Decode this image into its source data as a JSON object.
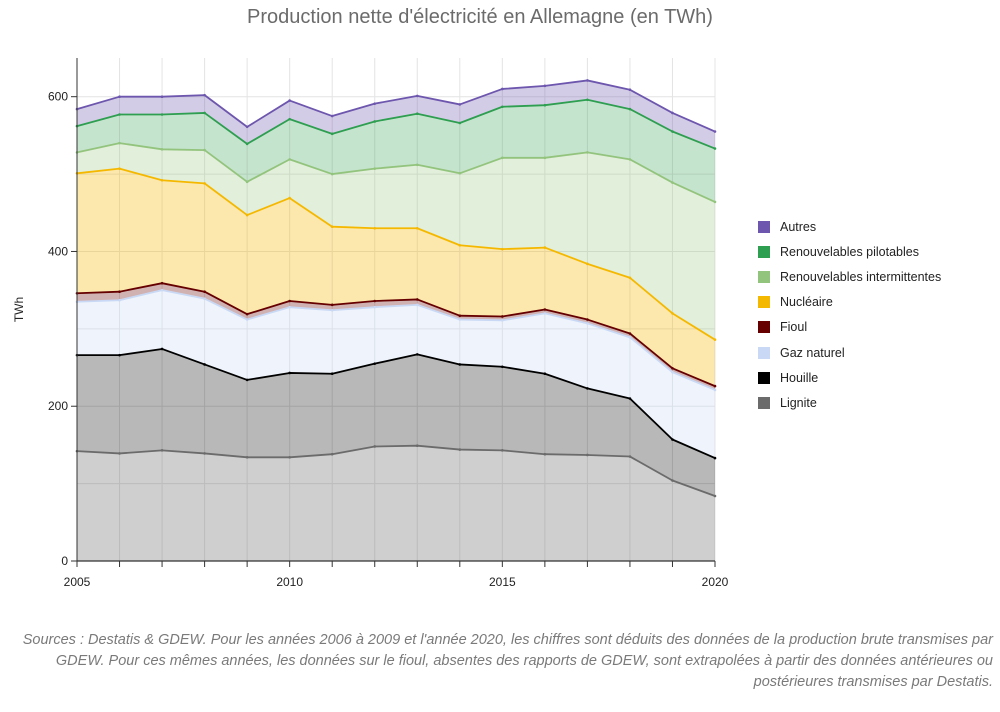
{
  "chart_data": {
    "type": "area",
    "stacked": true,
    "title": "Production nette d'électricité en Allemagne (en TWh)",
    "ylabel": "TWh",
    "xlabel": "",
    "x": [
      2005,
      2006,
      2007,
      2008,
      2009,
      2010,
      2011,
      2012,
      2013,
      2014,
      2015,
      2016,
      2017,
      2018,
      2019,
      2020
    ],
    "xlim": [
      2005,
      2020
    ],
    "ylim": [
      0,
      650
    ],
    "xticks": [
      "2005",
      "2010",
      "2015",
      "2020"
    ],
    "yticks": [
      "0",
      "200",
      "400",
      "600"
    ],
    "grid": true,
    "legend_position": "right",
    "series": [
      {
        "name": "Lignite",
        "color": "#6b6b6b",
        "values": [
          142,
          139,
          143,
          139,
          134,
          134,
          138,
          148,
          149,
          144,
          143,
          138,
          137,
          135,
          104,
          84
        ]
      },
      {
        "name": "Houille",
        "color": "#000000",
        "values": [
          124,
          127,
          131,
          115,
          100,
          109,
          104,
          107,
          118,
          110,
          108,
          104,
          86,
          75,
          53,
          49
        ]
      },
      {
        "name": "Gaz naturel",
        "color": "#c9d9f5",
        "values": [
          69,
          71,
          76,
          85,
          78,
          85,
          82,
          73,
          64,
          58,
          60,
          78,
          84,
          79,
          87,
          88
        ]
      },
      {
        "name": "Fioul",
        "color": "#660000",
        "values": [
          11,
          11,
          9,
          9,
          7,
          8,
          7,
          8,
          7,
          5,
          5,
          5,
          5,
          5,
          5,
          5
        ]
      },
      {
        "name": "Nucléaire",
        "color": "#f5b800",
        "values": [
          155,
          159,
          133,
          140,
          128,
          133,
          101,
          94,
          92,
          91,
          87,
          80,
          72,
          72,
          71,
          60
        ]
      },
      {
        "name": "Renouvelables intermittentes",
        "color": "#93c47d",
        "values": [
          27,
          33,
          40,
          43,
          43,
          50,
          68,
          77,
          82,
          93,
          118,
          116,
          144,
          153,
          169,
          178
        ]
      },
      {
        "name": "Renouvelables pilotables",
        "color": "#2e9e50",
        "values": [
          34,
          37,
          45,
          48,
          49,
          52,
          52,
          61,
          66,
          65,
          66,
          68,
          68,
          65,
          66,
          69
        ]
      },
      {
        "name": "Autres",
        "color": "#6d56ad",
        "values": [
          22,
          23,
          23,
          23,
          22,
          24,
          23,
          23,
          23,
          24,
          23,
          25,
          25,
          25,
          24,
          22
        ]
      }
    ]
  },
  "legend_order": [
    "Autres",
    "Renouvelables pilotables",
    "Renouvelables intermittentes",
    "Nucléaire",
    "Fioul",
    "Gaz naturel",
    "Houille",
    "Lignite"
  ],
  "footnote": "Sources : Destatis & GDEW. Pour les années 2006 à 2009 et l'année 2020, les chiffres sont déduits des données de la production brute transmises par GDEW. Pour ces mêmes années, les données sur le fioul, absentes des rapports de GDEW, sont extrapolées à partir des données antérieures ou postérieures transmises par Destatis."
}
